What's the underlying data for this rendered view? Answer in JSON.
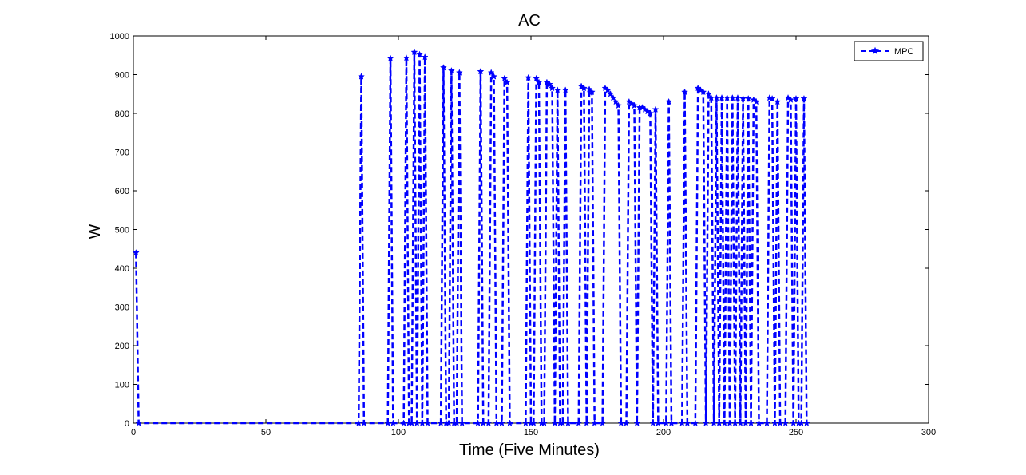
{
  "chart_data": {
    "type": "line",
    "title": "AC",
    "xlabel": "Time (Five Minutes)",
    "ylabel": "W",
    "xlim": [
      0,
      300
    ],
    "ylim": [
      0,
      1000
    ],
    "xticks": [
      0,
      50,
      100,
      150,
      200,
      250,
      300
    ],
    "yticks": [
      0,
      100,
      200,
      300,
      400,
      500,
      600,
      700,
      800,
      900,
      1000
    ],
    "grid": false,
    "legend_position": "top-right",
    "series": [
      {
        "name": "MPC",
        "color": "#0000ff",
        "line_style": "dashed",
        "marker": "star",
        "points": [
          [
            1,
            440
          ],
          [
            2,
            0
          ],
          [
            85,
            0
          ],
          [
            86,
            895
          ],
          [
            87,
            0
          ],
          [
            96,
            0
          ],
          [
            97,
            942
          ],
          [
            98,
            0
          ],
          [
            102,
            0
          ],
          [
            103,
            943
          ],
          [
            104,
            0
          ],
          [
            105,
            0
          ],
          [
            106,
            958
          ],
          [
            107,
            0
          ],
          [
            108,
            952
          ],
          [
            109,
            0
          ],
          [
            110,
            945
          ],
          [
            111,
            0
          ],
          [
            116,
            0
          ],
          [
            117,
            918
          ],
          [
            118,
            0
          ],
          [
            119,
            0
          ],
          [
            120,
            910
          ],
          [
            121,
            0
          ],
          [
            122,
            0
          ],
          [
            123,
            905
          ],
          [
            124,
            0
          ],
          [
            130,
            0
          ],
          [
            131,
            908
          ],
          [
            132,
            0
          ],
          [
            134,
            0
          ],
          [
            135,
            905
          ],
          [
            136,
            895
          ],
          [
            137,
            0
          ],
          [
            139,
            0
          ],
          [
            140,
            890
          ],
          [
            141,
            880
          ],
          [
            142,
            0
          ],
          [
            148,
            0
          ],
          [
            149,
            892
          ],
          [
            150,
            0
          ],
          [
            151,
            0
          ],
          [
            152,
            890
          ],
          [
            153,
            880
          ],
          [
            154,
            0
          ],
          [
            155,
            0
          ],
          [
            156,
            880
          ],
          [
            157,
            875
          ],
          [
            158,
            865
          ],
          [
            159,
            0
          ],
          [
            160,
            860
          ],
          [
            161,
            0
          ],
          [
            162,
            0
          ],
          [
            163,
            860
          ],
          [
            164,
            0
          ],
          [
            168,
            0
          ],
          [
            169,
            870
          ],
          [
            170,
            865
          ],
          [
            171,
            0
          ],
          [
            172,
            862
          ],
          [
            173,
            855
          ],
          [
            174,
            0
          ],
          [
            177,
            0
          ],
          [
            178,
            865
          ],
          [
            179,
            860
          ],
          [
            180,
            850
          ],
          [
            181,
            840
          ],
          [
            182,
            830
          ],
          [
            183,
            820
          ],
          [
            184,
            0
          ],
          [
            186,
            0
          ],
          [
            187,
            830
          ],
          [
            188,
            825
          ],
          [
            189,
            820
          ],
          [
            190,
            0
          ],
          [
            191,
            815
          ],
          [
            192,
            815
          ],
          [
            193,
            810
          ],
          [
            194,
            805
          ],
          [
            195,
            800
          ],
          [
            196,
            0
          ],
          [
            197,
            810
          ],
          [
            198,
            0
          ],
          [
            201,
            0
          ],
          [
            202,
            830
          ],
          [
            203,
            0
          ],
          [
            207,
            0
          ],
          [
            208,
            855
          ],
          [
            209,
            0
          ],
          [
            212,
            0
          ],
          [
            213,
            865
          ],
          [
            214,
            860
          ],
          [
            215,
            855
          ],
          [
            216,
            0
          ],
          [
            217,
            850
          ],
          [
            218,
            840
          ],
          [
            219,
            0
          ],
          [
            220,
            840
          ],
          [
            221,
            0
          ],
          [
            222,
            840
          ],
          [
            223,
            0
          ],
          [
            224,
            840
          ],
          [
            225,
            0
          ],
          [
            226,
            840
          ],
          [
            227,
            0
          ],
          [
            228,
            840
          ],
          [
            229,
            0
          ],
          [
            230,
            838
          ],
          [
            231,
            0
          ],
          [
            232,
            838
          ],
          [
            233,
            0
          ],
          [
            234,
            835
          ],
          [
            235,
            830
          ],
          [
            236,
            0
          ],
          [
            239,
            0
          ],
          [
            240,
            840
          ],
          [
            241,
            838
          ],
          [
            242,
            0
          ],
          [
            243,
            830
          ],
          [
            244,
            0
          ],
          [
            246,
            0
          ],
          [
            247,
            840
          ],
          [
            248,
            835
          ],
          [
            249,
            0
          ],
          [
            250,
            838
          ],
          [
            251,
            0
          ],
          [
            252,
            0
          ],
          [
            253,
            838
          ],
          [
            254,
            0
          ]
        ]
      }
    ]
  }
}
